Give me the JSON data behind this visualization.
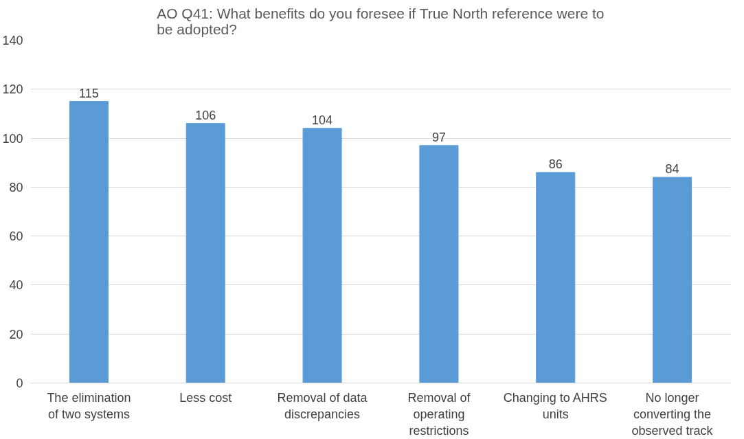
{
  "chart_data": {
    "type": "bar",
    "title": "AO Q41: What benefits do you foresee if True North reference were to be adopted?",
    "categories": [
      "The elimination of two systems",
      "Less cost",
      "Removal of data discrepancies",
      "Removal of operating restrictions",
      "Changing to AHRS units",
      "No longer converting the observed track"
    ],
    "values": [
      115,
      106,
      104,
      97,
      86,
      84
    ],
    "color": "#5b9bd5",
    "ylim": [
      0,
      140
    ],
    "yticks": [
      0,
      20,
      40,
      60,
      80,
      100,
      120,
      140
    ],
    "grid": "y",
    "data_labels": true
  }
}
